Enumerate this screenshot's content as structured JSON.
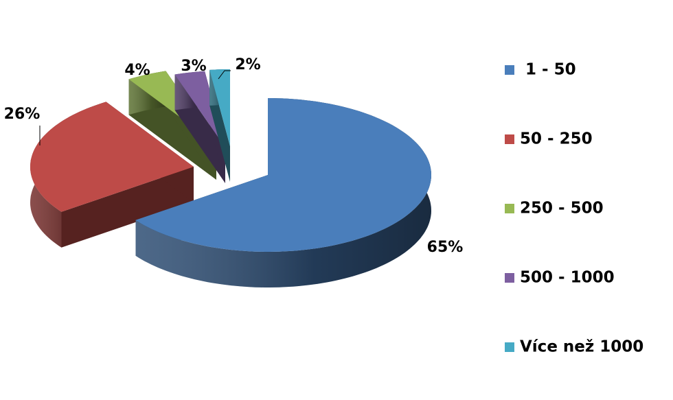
{
  "chart_data": {
    "type": "pie",
    "categories": [
      "1 - 50",
      "50 - 250",
      "250 - 500",
      "500 - 1000",
      "Více než 1000"
    ],
    "values": [
      65,
      26,
      4,
      3,
      2
    ],
    "value_labels": [
      "65%",
      "26%",
      "4%",
      "3%",
      "2%"
    ],
    "colors": [
      "#4a7ebb",
      "#be4b48",
      "#98b954",
      "#7d5fa0",
      "#46aac5"
    ],
    "legend": "right"
  }
}
